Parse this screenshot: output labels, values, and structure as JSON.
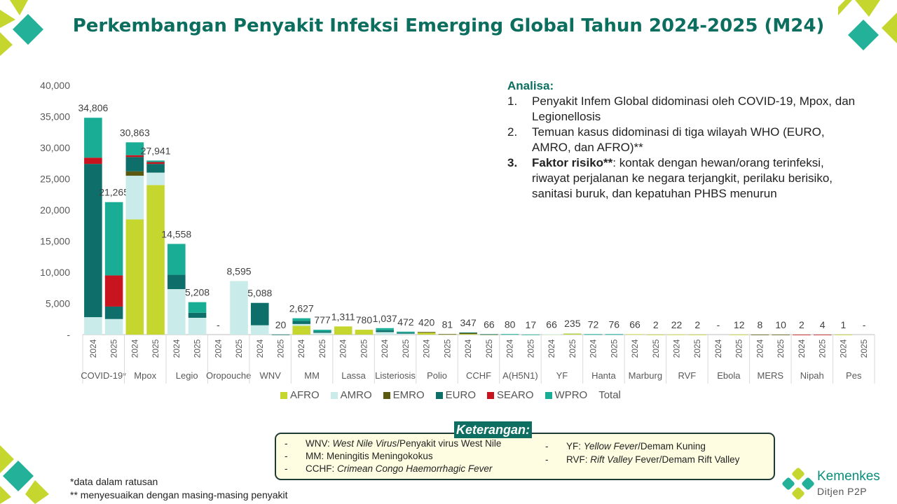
{
  "title": "Perkembangan Penyakit Infeksi Emerging Global Tahun 2024-2025 (M24)",
  "analysis": {
    "heading": "Analisa:",
    "items": [
      {
        "num": "1.",
        "text": "Penyakit Infem Global didominasi oleh COVID-19, Mpox, dan Legionellosis"
      },
      {
        "num": "2.",
        "text": "Temuan kasus didominasi di tiga wilayah WHO (EURO, AMRO, dan AFRO)**"
      },
      {
        "num": "3.",
        "bold": "Faktor risiko**",
        "text": ": kontak dengan hewan/orang terinfeksi, riwayat perjalanan ke negara terjangkit, perilaku berisiko, sanitasi buruk, dan kepatuhan PHBS menurun"
      }
    ]
  },
  "legend": [
    {
      "name": "AFRO",
      "color": "#c5d62f"
    },
    {
      "name": "AMRO",
      "color": "#c9ecea"
    },
    {
      "name": "EMRO",
      "color": "#5c5a10"
    },
    {
      "name": "EURO",
      "color": "#0d6e6a"
    },
    {
      "name": "SEARO",
      "color": "#c8141e"
    },
    {
      "name": "WPRO",
      "color": "#19ad96"
    },
    {
      "name": "Total",
      "color": ""
    }
  ],
  "notes": {
    "title": "Keterangan:",
    "left": [
      {
        "dash": "-",
        "term": "WNV: ",
        "italic": "West Nile Virus",
        "rest": "/Penyakit virus West Nile"
      },
      {
        "dash": "-",
        "term": "MM: Meningitis Meningokokus",
        "italic": "",
        "rest": ""
      },
      {
        "dash": "-",
        "term": "CCHF: ",
        "italic": "Crimean Congo Haemorrhagic Fever",
        "rest": ""
      }
    ],
    "right": [
      {
        "dash": "-",
        "term": "YF: ",
        "italic": "Yellow Fever",
        "rest": "/Demam Kuning"
      },
      {
        "dash": "-",
        "term": "RVF: ",
        "italic": "Rift Valley",
        "rest": " Fever/Demam Rift Valley"
      }
    ]
  },
  "footnotes": [
    "*data dalam ratusan",
    "** menyesuaikan dengan masing-masing penyakit"
  ],
  "logo": {
    "name": "Kemenkes",
    "sub": "Ditjen P2P"
  },
  "chart_data": {
    "type": "bar",
    "stacked": true,
    "ylim": [
      0,
      40000
    ],
    "yticks": [
      "-",
      "5,000",
      "10,000",
      "15,000",
      "20,000",
      "25,000",
      "30,000",
      "35,000",
      "40,000"
    ],
    "groups": [
      "COVID-19*",
      "Mpox",
      "Legio",
      "Oropouche",
      "WNV",
      "MM",
      "Lassa",
      "Listeriosis",
      "Polio",
      "CCHF",
      "A(H5N1)",
      "YF",
      "Hanta",
      "Marburg",
      "RVF",
      "Ebola",
      "MERS",
      "Nipah",
      "Pes"
    ],
    "years": [
      "2024",
      "2025"
    ],
    "series_names": [
      "AFRO",
      "AMRO",
      "EMRO",
      "EURO",
      "SEARO",
      "WPRO"
    ],
    "totals": [
      [
        "34,806",
        "21,265"
      ],
      [
        "30,863",
        "27,941"
      ],
      [
        "14,558",
        "5,208"
      ],
      [
        "-",
        "8,595"
      ],
      [
        "5,088",
        "20"
      ],
      [
        "2,627",
        "777"
      ],
      [
        "1,311",
        "780"
      ],
      [
        "1,037",
        "472"
      ],
      [
        "420",
        "81"
      ],
      [
        "347",
        "66"
      ],
      [
        "80",
        "17"
      ],
      [
        "66",
        "235"
      ],
      [
        "72",
        "76"
      ],
      [
        "66",
        "2"
      ],
      [
        "22",
        "2"
      ],
      [
        "-",
        "12"
      ],
      [
        "8",
        "10"
      ],
      [
        "2",
        "4"
      ],
      [
        "1",
        "-"
      ]
    ],
    "bars": [
      [
        [
          0,
          2800,
          0,
          24600,
          1000,
          6406
        ],
        [
          0,
          2500,
          0,
          2000,
          5000,
          11765
        ]
      ],
      [
        [
          18500,
          7000,
          700,
          2300,
          300,
          2063
        ],
        [
          24000,
          2000,
          0,
          1400,
          300,
          241
        ]
      ],
      [
        [
          0,
          7300,
          0,
          2300,
          0,
          4958
        ],
        [
          0,
          2700,
          0,
          800,
          0,
          1708
        ]
      ],
      [
        [
          0,
          0,
          0,
          0,
          0,
          0
        ],
        [
          0,
          8595,
          0,
          0,
          0,
          0
        ]
      ],
      [
        [
          0,
          1500,
          0,
          3588,
          0,
          0
        ],
        [
          0,
          10,
          0,
          10,
          0,
          0
        ]
      ],
      [
        [
          1400,
          300,
          0,
          500,
          0,
          427
        ],
        [
          0,
          300,
          0,
          200,
          0,
          277
        ]
      ],
      [
        [
          1311,
          0,
          0,
          0,
          0,
          0
        ],
        [
          780,
          0,
          0,
          0,
          0,
          0
        ]
      ],
      [
        [
          0,
          400,
          0,
          300,
          0,
          337
        ],
        [
          0,
          150,
          0,
          150,
          0,
          172
        ]
      ],
      [
        [
          300,
          0,
          120,
          0,
          0,
          0
        ],
        [
          61,
          0,
          20,
          0,
          0,
          0
        ]
      ],
      [
        [
          100,
          0,
          150,
          97,
          0,
          0
        ],
        [
          20,
          0,
          30,
          16,
          0,
          0
        ]
      ],
      [
        [
          0,
          40,
          0,
          20,
          0,
          20
        ],
        [
          0,
          10,
          0,
          0,
          0,
          7
        ]
      ],
      [
        [
          56,
          10,
          0,
          0,
          0,
          0
        ],
        [
          200,
          35,
          0,
          0,
          0,
          0
        ]
      ],
      [
        [
          0,
          30,
          0,
          30,
          0,
          12
        ],
        [
          0,
          30,
          0,
          30,
          0,
          16
        ]
      ],
      [
        [
          66,
          0,
          0,
          0,
          0,
          0
        ],
        [
          2,
          0,
          0,
          0,
          0,
          0
        ]
      ],
      [
        [
          22,
          0,
          0,
          0,
          0,
          0
        ],
        [
          2,
          0,
          0,
          0,
          0,
          0
        ]
      ],
      [
        [
          0,
          0,
          0,
          0,
          0,
          0
        ],
        [
          12,
          0,
          0,
          0,
          0,
          0
        ]
      ],
      [
        [
          0,
          0,
          8,
          0,
          0,
          0
        ],
        [
          0,
          0,
          10,
          0,
          0,
          0
        ]
      ],
      [
        [
          0,
          0,
          0,
          0,
          2,
          0
        ],
        [
          0,
          0,
          0,
          0,
          4,
          0
        ]
      ],
      [
        [
          1,
          0,
          0,
          0,
          0,
          0
        ],
        [
          0,
          0,
          0,
          0,
          0,
          0
        ]
      ]
    ]
  }
}
